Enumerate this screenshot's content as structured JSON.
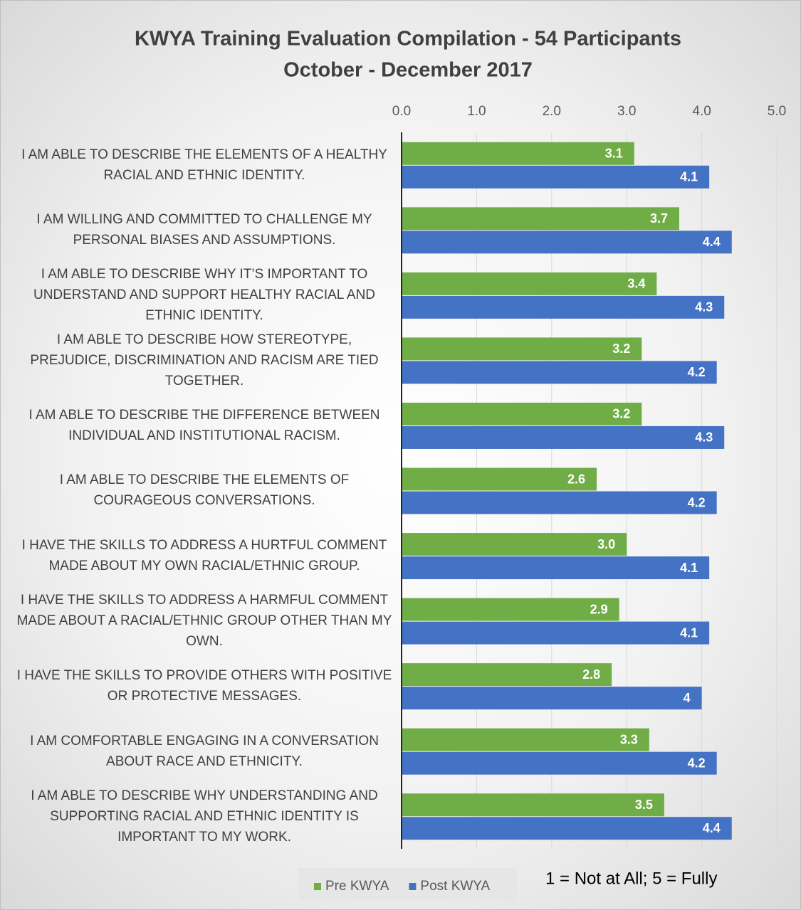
{
  "chart_data": {
    "type": "hbar",
    "title": "KWYA Training Evaluation Compilation - 54 Participants",
    "subtitle": "October - December 2017",
    "annotation": "1 = Not at All; 5 = Fully",
    "categories": [
      "I AM ABLE TO DESCRIBE THE ELEMENTS OF A HEALTHY RACIAL AND ETHNIC IDENTITY.",
      "I AM WILLING AND COMMITTED TO CHALLENGE MY PERSONAL BIASES AND ASSUMPTIONS.",
      "I AM ABLE TO DESCRIBE WHY IT’S IMPORTANT TO UNDERSTAND AND SUPPORT HEALTHY RACIAL AND ETHNIC IDENTITY.",
      "I AM ABLE TO DESCRIBE HOW STEREOTYPE, PREJUDICE, DISCRIMINATION AND RACISM ARE TIED TOGETHER.",
      "I AM ABLE TO DESCRIBE THE DIFFERENCE BETWEEN INDIVIDUAL AND INSTITUTIONAL RACISM.",
      "I AM ABLE TO DESCRIBE THE ELEMENTS OF COURAGEOUS CONVERSATIONS.",
      "I HAVE THE SKILLS TO ADDRESS A HURTFUL COMMENT MADE ABOUT MY OWN RACIAL/ETHNIC GROUP.",
      "I HAVE THE SKILLS TO ADDRESS A HARMFUL COMMENT MADE ABOUT A RACIAL/ETHNIC GROUP OTHER THAN MY OWN.",
      "I HAVE THE SKILLS TO PROVIDE OTHERS WITH POSITIVE OR PROTECTIVE MESSAGES.",
      "I AM COMFORTABLE ENGAGING IN A CONVERSATION ABOUT RACE AND ETHNICITY.",
      "I AM ABLE TO DESCRIBE WHY UNDERSTANDING AND SUPPORTING RACIAL AND ETHNIC IDENTITY IS IMPORTANT TO MY WORK."
    ],
    "series": [
      {
        "name": "Pre KWYA",
        "color": "#70ad47",
        "values": [
          3.1,
          3.7,
          3.4,
          3.2,
          3.2,
          2.6,
          3.0,
          2.9,
          2.8,
          3.3,
          3.5
        ],
        "value_labels": [
          "3.1",
          "3.7",
          "3.4",
          "3.2",
          "3.2",
          "2.6",
          "3.0",
          "2.9",
          "2.8",
          "3.3",
          "3.5"
        ]
      },
      {
        "name": "Post KWYA",
        "color": "#4472c4",
        "values": [
          4.1,
          4.4,
          4.3,
          4.2,
          4.3,
          4.2,
          4.1,
          4.1,
          4,
          4.2,
          4.4
        ]
      }
    ],
    "xlim": [
      0,
      5
    ],
    "xticks": [
      {
        "value": 0,
        "label": "0.0"
      },
      {
        "value": 1,
        "label": "1.0"
      },
      {
        "value": 2,
        "label": "2.0"
      },
      {
        "value": 3,
        "label": "3.0"
      },
      {
        "value": 4,
        "label": "4.0"
      },
      {
        "value": 5,
        "label": "5.0"
      }
    ],
    "grid": true,
    "legend": "bottom"
  }
}
